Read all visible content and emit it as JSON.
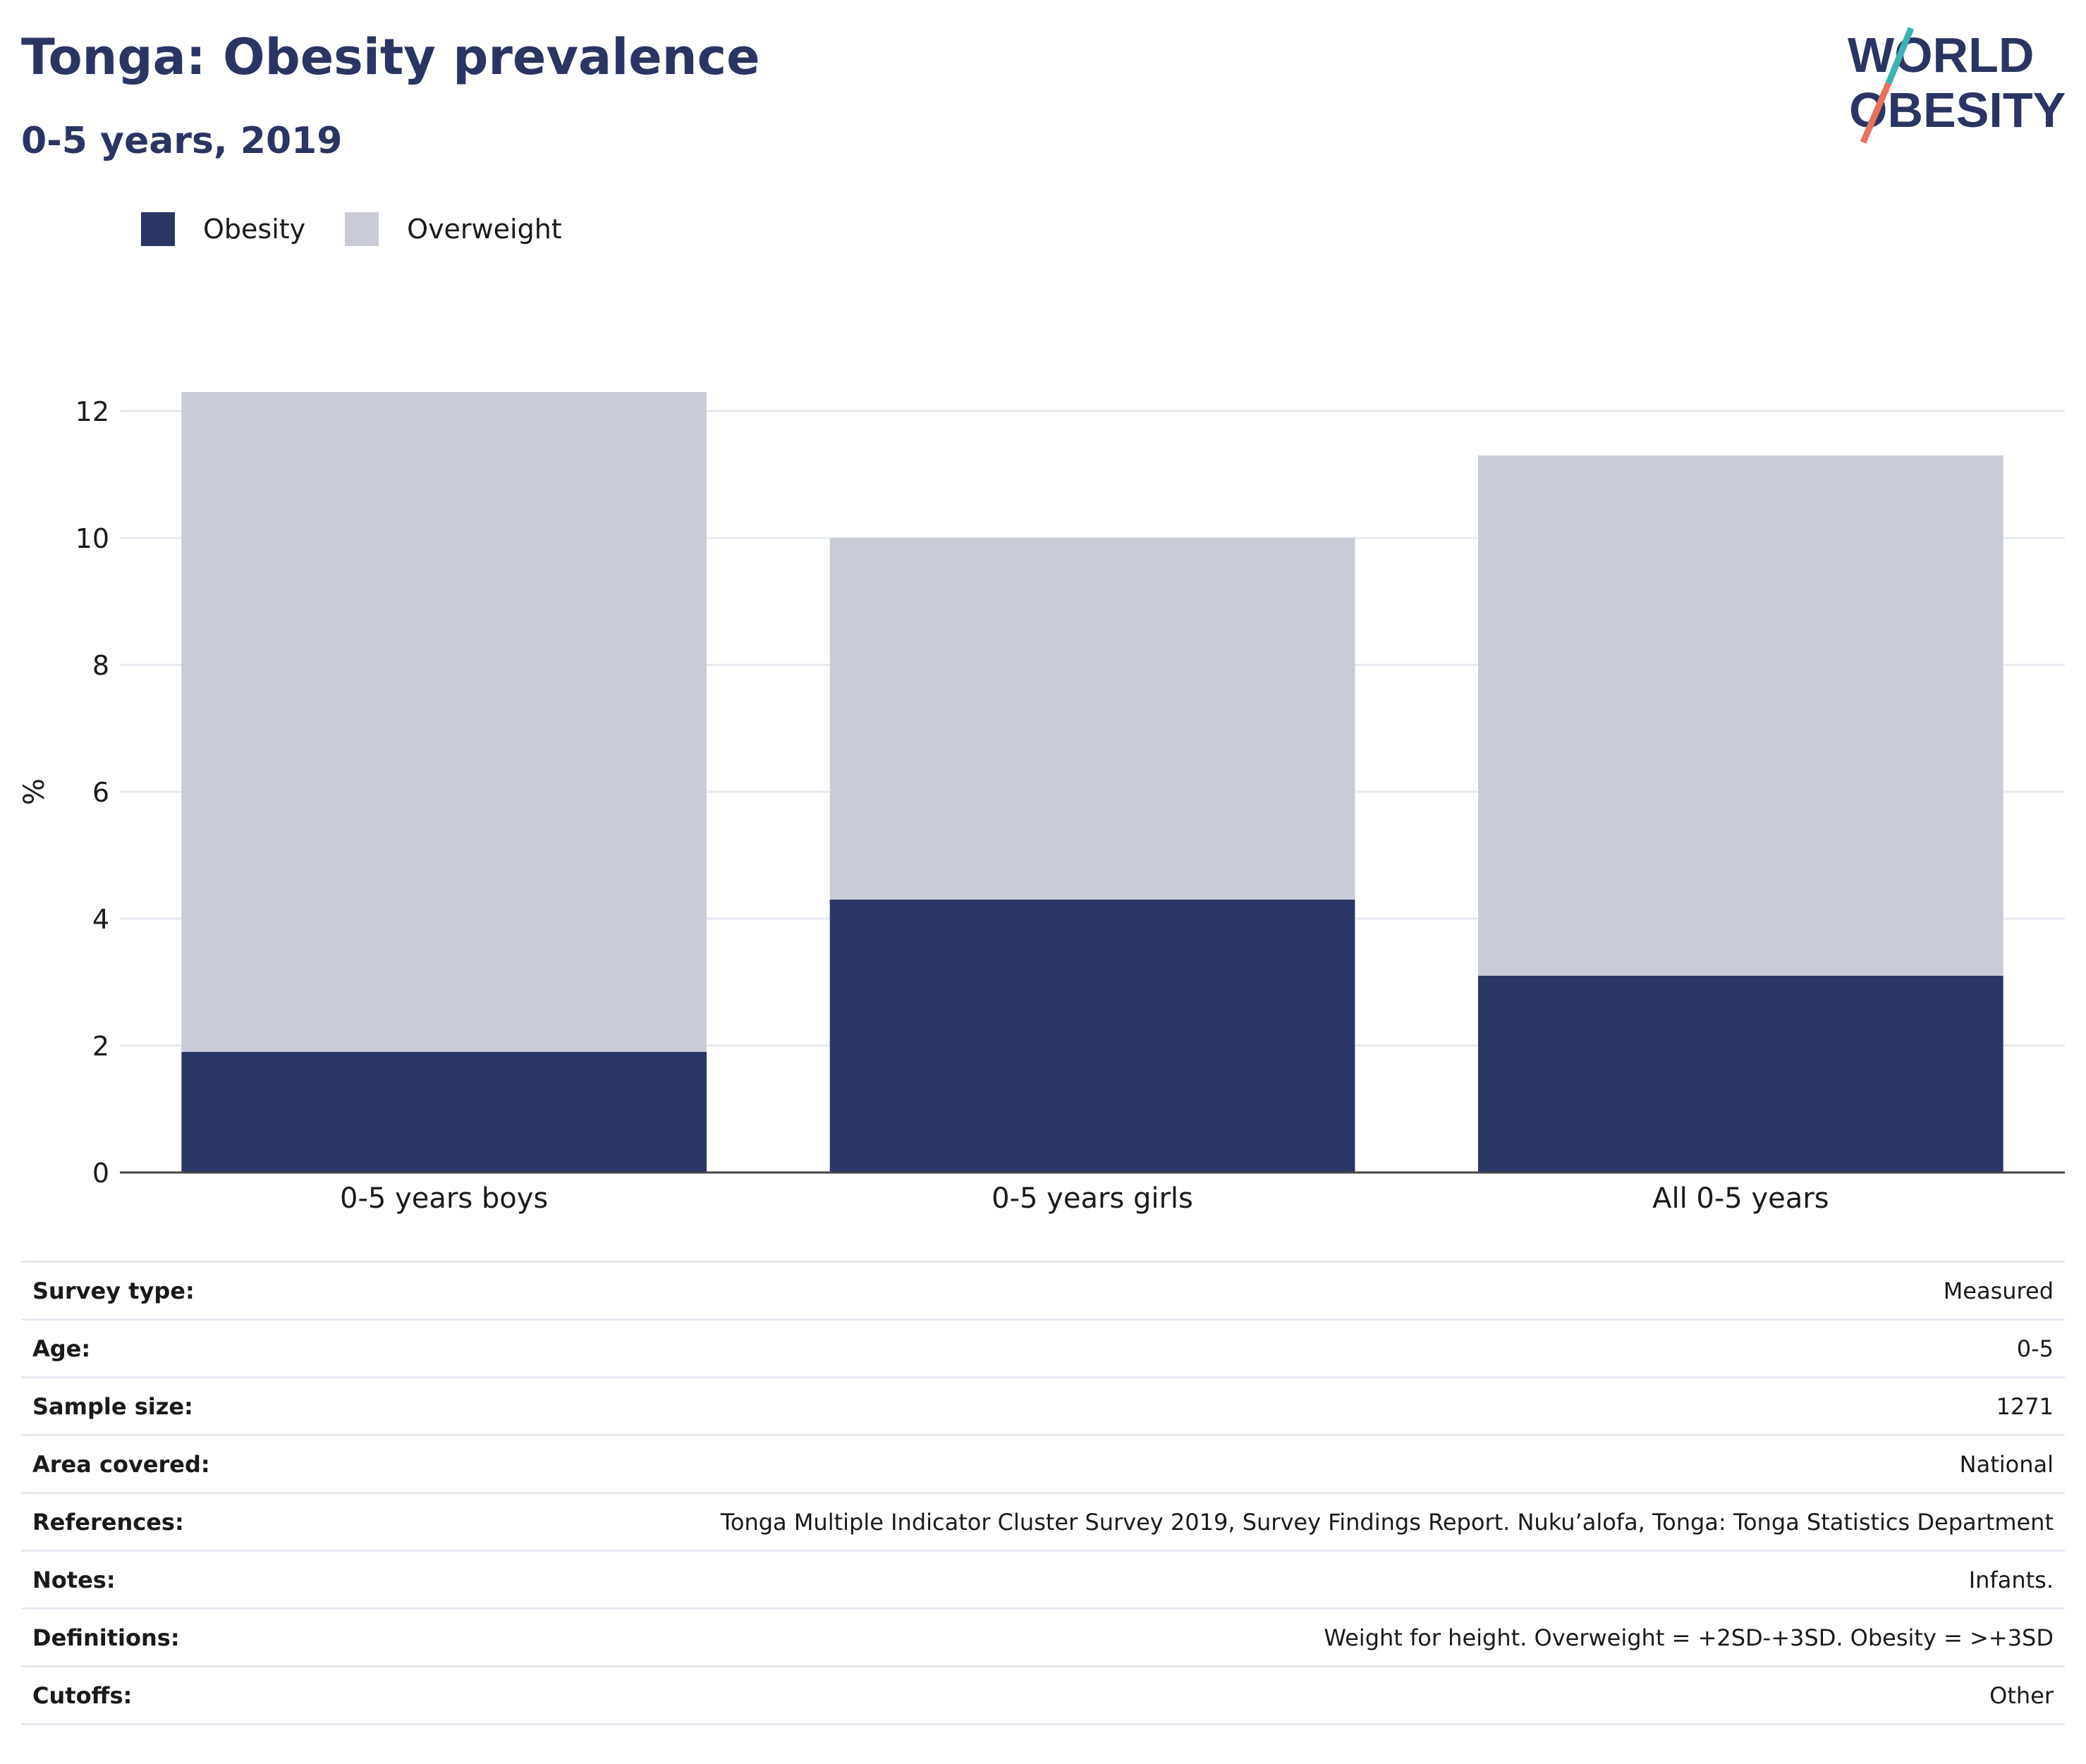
{
  "header": {
    "title": "Tonga: Obesity prevalence",
    "subtitle": "0-5 years, 2019"
  },
  "logo": {
    "line1": "WORLD",
    "line2": "OBESITY",
    "slash_color_top": "#3bb3b3",
    "slash_color_bottom": "#e8715a"
  },
  "legend": {
    "items": [
      {
        "label": "Obesity",
        "color": "#2a3663"
      },
      {
        "label": "Overweight",
        "color": "#c9cbd6"
      }
    ]
  },
  "chart_data": {
    "type": "bar",
    "stacked": true,
    "categories": [
      "0-5 years boys",
      "0-5 years girls",
      "All 0-5 years"
    ],
    "series": [
      {
        "name": "Obesity",
        "values": [
          1.9,
          4.3,
          3.1
        ],
        "color": "#2a3663"
      },
      {
        "name": "Overweight",
        "values": [
          10.4,
          5.7,
          8.2
        ],
        "color": "#c9cbd6"
      }
    ],
    "title": "Tonga: Obesity prevalence",
    "subtitle": "0-5 years, 2019",
    "xlabel": "",
    "ylabel": "%",
    "ylim": [
      0,
      12.3
    ],
    "yticks": [
      0,
      2,
      4,
      6,
      8,
      10,
      12
    ],
    "grid": true,
    "legend_position": "top-left"
  },
  "meta": {
    "rows": [
      {
        "key": "Survey type:",
        "value": "Measured"
      },
      {
        "key": "Age:",
        "value": "0-5"
      },
      {
        "key": "Sample size:",
        "value": "1271"
      },
      {
        "key": "Area covered:",
        "value": "National"
      },
      {
        "key": "References:",
        "value": "Tonga Multiple Indicator Cluster Survey 2019, Survey Findings Report. Nuku’alofa, Tonga: Tonga Statistics Department"
      },
      {
        "key": "Notes:",
        "value": "Infants."
      },
      {
        "key": "Definitions:",
        "value": "Weight for height. Overweight = +2SD-+3SD. Obesity = >+3SD"
      },
      {
        "key": "Cutoffs:",
        "value": "Other"
      }
    ]
  }
}
